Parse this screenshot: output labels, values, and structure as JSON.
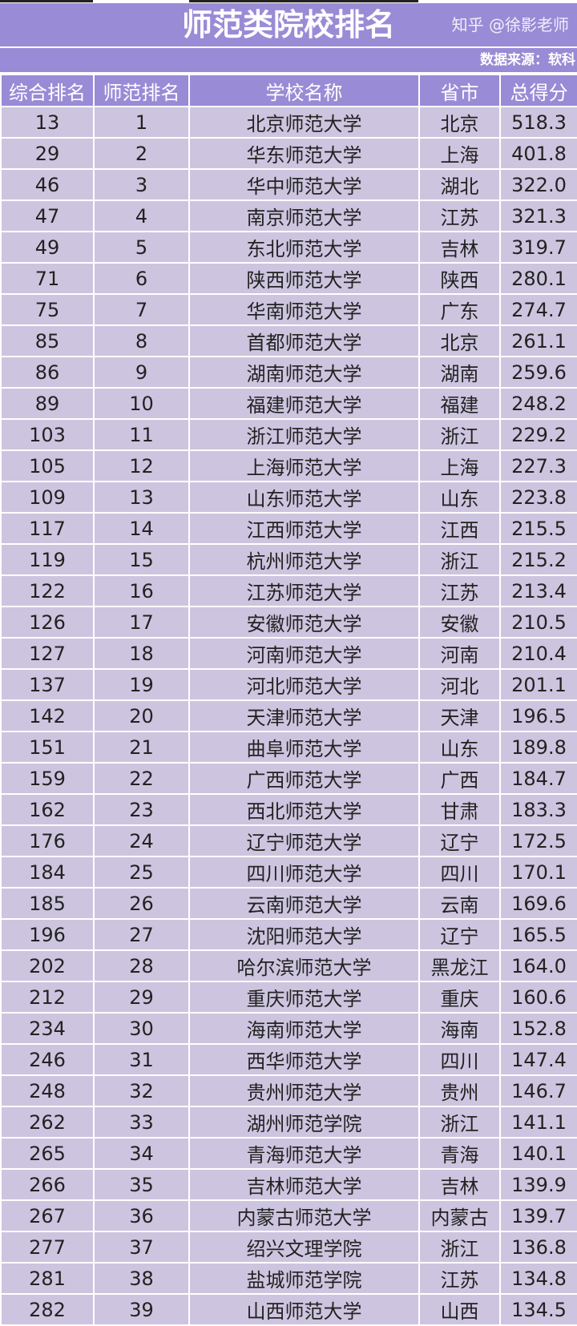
{
  "title": "师范类院校排名",
  "source": "数据来源：软科",
  "headers": [
    "综合排名",
    "师范排名",
    "学校名称",
    "省市",
    "总得分"
  ],
  "rows": [
    [
      "13",
      "1",
      "北京师范大学",
      "北京",
      "518.3"
    ],
    [
      "29",
      "2",
      "华东师范大学",
      "上海",
      "401.8"
    ],
    [
      "46",
      "3",
      "华中师范大学",
      "湖北",
      "322.0"
    ],
    [
      "47",
      "4",
      "南京师范大学",
      "江苏",
      "321.3"
    ],
    [
      "49",
      "5",
      "东北师范大学",
      "吉林",
      "319.7"
    ],
    [
      "71",
      "6",
      "陕西师范大学",
      "陕西",
      "280.1"
    ],
    [
      "75",
      "7",
      "华南师范大学",
      "广东",
      "274.7"
    ],
    [
      "85",
      "8",
      "首都师范大学",
      "北京",
      "261.1"
    ],
    [
      "86",
      "9",
      "湖南师范大学",
      "湖南",
      "259.6"
    ],
    [
      "89",
      "10",
      "福建师范大学",
      "福建",
      "248.2"
    ],
    [
      "103",
      "11",
      "浙江师范大学",
      "浙江",
      "229.2"
    ],
    [
      "105",
      "12",
      "上海师范大学",
      "上海",
      "227.3"
    ],
    [
      "109",
      "13",
      "山东师范大学",
      "山东",
      "223.8"
    ],
    [
      "117",
      "14",
      "江西师范大学",
      "江西",
      "215.5"
    ],
    [
      "119",
      "15",
      "杭州师范大学",
      "浙江",
      "215.2"
    ],
    [
      "122",
      "16",
      "江苏师范大学",
      "江苏",
      "213.4"
    ],
    [
      "126",
      "17",
      "安徽师范大学",
      "安徽",
      "210.5"
    ],
    [
      "127",
      "18",
      "河南师范大学",
      "河南",
      "210.4"
    ],
    [
      "137",
      "19",
      "河北师范大学",
      "河北",
      "201.1"
    ],
    [
      "142",
      "20",
      "天津师范大学",
      "天津",
      "196.5"
    ],
    [
      "151",
      "21",
      "曲阜师范大学",
      "山东",
      "189.8"
    ],
    [
      "159",
      "22",
      "广西师范大学",
      "广西",
      "184.7"
    ],
    [
      "162",
      "23",
      "西北师范大学",
      "甘肃",
      "183.3"
    ],
    [
      "176",
      "24",
      "辽宁师范大学",
      "辽宁",
      "172.5"
    ],
    [
      "184",
      "25",
      "四川师范大学",
      "四川",
      "170.1"
    ],
    [
      "185",
      "26",
      "云南师范大学",
      "云南",
      "169.6"
    ],
    [
      "196",
      "27",
      "沈阳师范大学",
      "辽宁",
      "165.5"
    ],
    [
      "202",
      "28",
      "哈尔滨师范大学",
      "黑龙江",
      "164.0"
    ],
    [
      "212",
      "29",
      "重庆师范大学",
      "重庆",
      "160.6"
    ],
    [
      "234",
      "30",
      "海南师范大学",
      "海南",
      "152.8"
    ],
    [
      "246",
      "31",
      "西华师范大学",
      "四川",
      "147.4"
    ],
    [
      "248",
      "32",
      "贵州师范大学",
      "贵州",
      "146.7"
    ],
    [
      "262",
      "33",
      "湖州师范学院",
      "浙江",
      "141.1"
    ],
    [
      "265",
      "34",
      "青海师范大学",
      "青海",
      "140.1"
    ],
    [
      "266",
      "35",
      "吉林师范大学",
      "吉林",
      "139.9"
    ],
    [
      "267",
      "36",
      "内蒙古师范大学",
      "内蒙古",
      "139.7"
    ],
    [
      "277",
      "37",
      "绍兴文理学院",
      "浙江",
      "136.8"
    ],
    [
      "281",
      "38",
      "盐城师范学院",
      "江苏",
      "134.8"
    ],
    [
      "282",
      "39",
      "山西师范大学",
      "山西",
      "134.5"
    ]
  ],
  "watermark": "知乎 @徐影老师"
}
